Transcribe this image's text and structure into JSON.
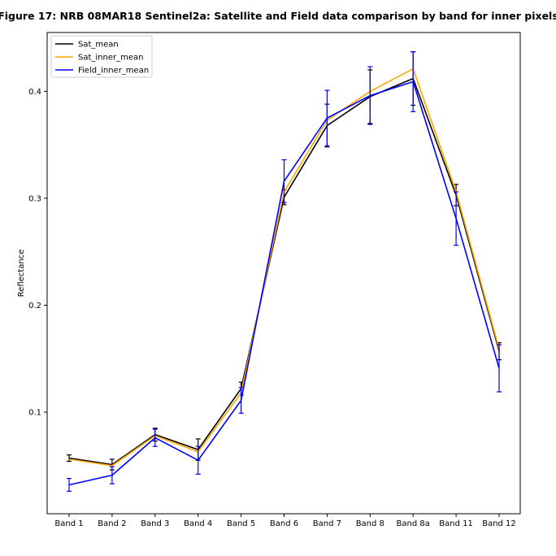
{
  "chart_data": {
    "type": "line",
    "title": "Figure 17: NRB 08MAR18  Sentinel2a: Satellite and Field data comparison by band for inner pixels",
    "xlabel": "",
    "ylabel": "Reflectance",
    "categories": [
      "Band 1",
      "Band 2",
      "Band 3",
      "Band 4",
      "Band 5",
      "Band 6",
      "Band 7",
      "Band 8",
      "Band 8a",
      "Band 11",
      "Band 12"
    ],
    "ylim": [
      0.005,
      0.455
    ],
    "yticks": [
      0.1,
      0.2,
      0.3,
      0.4
    ],
    "ytick_labels": [
      "0.1",
      "0.2",
      "0.3",
      "0.4"
    ],
    "grid": false,
    "legend_position": "top-left",
    "series": [
      {
        "name": "Sat_mean",
        "color": "#000000",
        "values": [
          0.057,
          0.051,
          0.079,
          0.065,
          0.122,
          0.301,
          0.368,
          0.395,
          0.412,
          0.303,
          0.157
        ],
        "error": [
          0.003,
          0.005,
          0.006,
          0.01,
          0.006,
          0.007,
          0.02,
          0.025,
          0.025,
          0.01,
          0.008
        ],
        "errorbars": true
      },
      {
        "name": "Sat_inner_mean",
        "color": "#ffa500",
        "values": [
          0.056,
          0.05,
          0.078,
          0.063,
          0.118,
          0.306,
          0.373,
          0.4,
          0.421,
          0.306,
          0.159
        ],
        "errorbars": false
      },
      {
        "name": "Field_inner_mean",
        "color": "#0000ff",
        "values": [
          0.032,
          0.041,
          0.076,
          0.055,
          0.111,
          0.316,
          0.375,
          0.396,
          0.409,
          0.281,
          0.141
        ],
        "error": [
          0.006,
          0.008,
          0.008,
          0.013,
          0.012,
          0.02,
          0.026,
          0.027,
          0.028,
          0.025,
          0.022
        ],
        "errorbars": true
      }
    ]
  }
}
